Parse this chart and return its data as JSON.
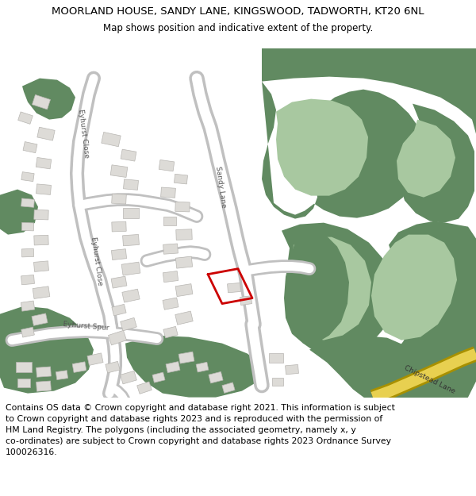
{
  "title_line1": "MOORLAND HOUSE, SANDY LANE, KINGSWOOD, TADWORTH, KT20 6NL",
  "title_line2": "Map shows position and indicative extent of the property.",
  "footer": "Contains OS data © Crown copyright and database right 2021. This information is subject\nto Crown copyright and database rights 2023 and is reproduced with the permission of\nHM Land Registry. The polygons (including the associated geometry, namely x, y\nco-ordinates) are subject to Crown copyright and database rights 2023 Ordnance Survey\n100026316.",
  "bg_color": "#ffffff",
  "map_bg": "#f2f1ee",
  "green_dark": "#618a61",
  "green_light": "#a8c8a0",
  "road_fill": "#ffffff",
  "road_border": "#c8c8c8",
  "building_fill": "#dddbd7",
  "building_border": "#b8b6b2",
  "red_plot": "#cc0000",
  "yellow_fill": "#e8c840",
  "yellow_border": "#c8a800",
  "label_color": "#555555",
  "chipstead_label": "#555555",
  "title_fontsize": 9.5,
  "subtitle_fontsize": 8.5,
  "footer_fontsize": 7.8,
  "label_fontsize": 6.5
}
